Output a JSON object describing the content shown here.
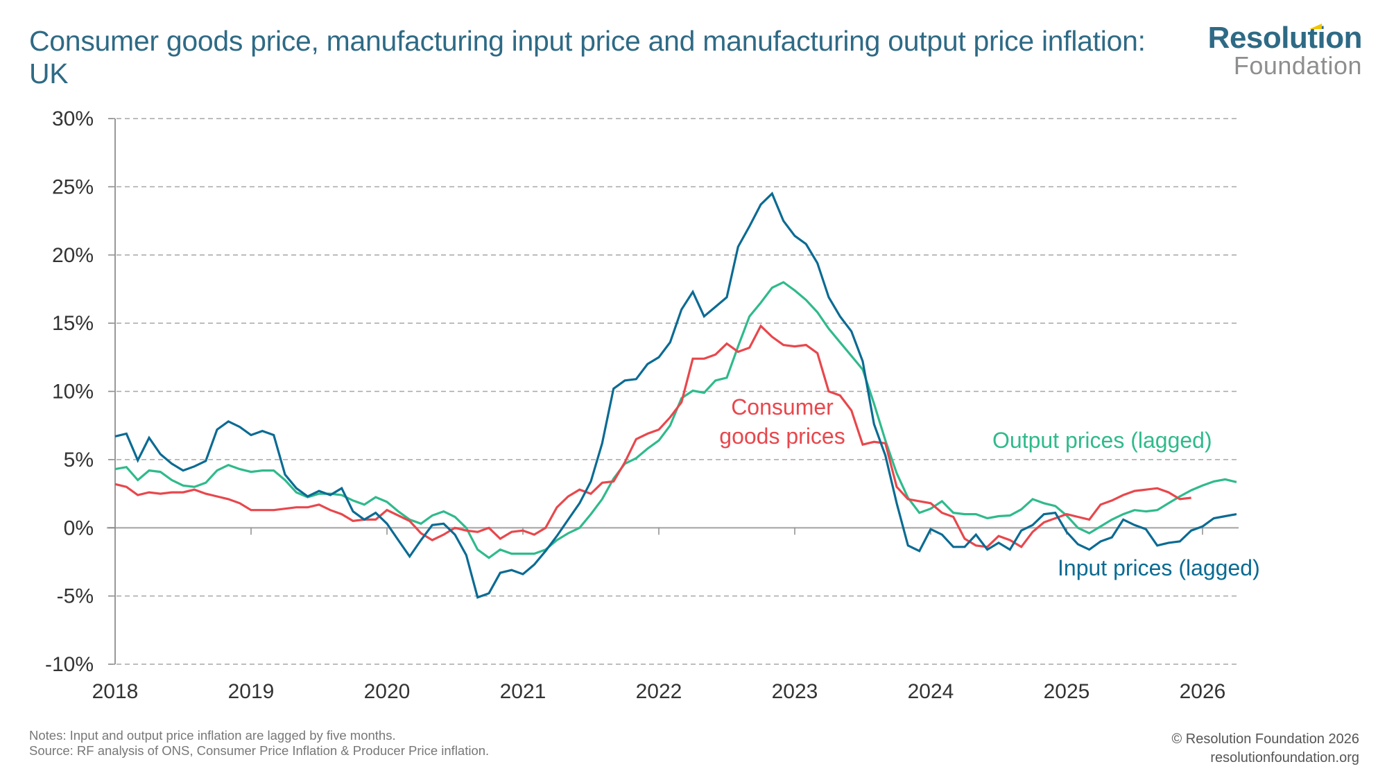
{
  "header": {
    "title": "Consumer goods price, manufacturing input price and manufacturing output price inflation: UK",
    "logo_main": "Resolution",
    "logo_sub": "Foundation"
  },
  "footer": {
    "notes": "Notes: Input and output price inflation are lagged by five months.",
    "source": "Source: RF analysis of ONS, Consumer Price Inflation & Producer Price inflation.",
    "copyright": "© Resolution Foundation 2026",
    "website": "resolutionfoundation.org"
  },
  "colors": {
    "consumer": "#e8474c",
    "output": "#2fba8c",
    "input": "#0a6b93",
    "title": "#2e6a85",
    "grid": "#a6a6a6",
    "axis": "#8c8c8c"
  },
  "chart_data": {
    "type": "line",
    "title": "Consumer goods price, manufacturing input price and manufacturing output price inflation: UK",
    "xlabel": "",
    "ylabel": "",
    "x_start": "2018-01",
    "x_frequency": "monthly",
    "x_ticks": [
      "2018",
      "2019",
      "2020",
      "2021",
      "2022",
      "2023",
      "2024",
      "2025",
      "2026"
    ],
    "y_ticks": [
      "-10%",
      "-5%",
      "0%",
      "5%",
      "10%",
      "15%",
      "20%",
      "25%",
      "30%"
    ],
    "ylim": [
      -10,
      30
    ],
    "xlim_months": [
      0,
      99
    ],
    "grid": "horizontal dashed",
    "legend": "inline labels",
    "series": [
      {
        "name": "Consumer goods prices",
        "label_lines": [
          "Consumer",
          "goods prices"
        ],
        "color_key": "consumer",
        "values": [
          3.2,
          3.0,
          2.4,
          2.6,
          2.5,
          2.6,
          2.6,
          2.8,
          2.5,
          2.3,
          2.1,
          1.8,
          1.3,
          1.3,
          1.3,
          1.4,
          1.5,
          1.5,
          1.7,
          1.3,
          1.0,
          0.5,
          0.6,
          0.6,
          1.3,
          0.9,
          0.5,
          -0.4,
          -0.9,
          -0.5,
          0.0,
          -0.2,
          -0.3,
          0.0,
          -0.8,
          -0.3,
          -0.2,
          -0.5,
          0.0,
          1.5,
          2.3,
          2.8,
          2.5,
          3.3,
          3.4,
          4.8,
          6.5,
          6.9,
          7.2,
          8.1,
          9.2,
          12.4,
          12.4,
          12.7,
          13.5,
          12.9,
          13.2,
          14.8,
          14.0,
          13.4,
          13.3,
          13.4,
          12.8,
          10.0,
          9.7,
          8.6,
          6.1,
          6.3,
          6.2,
          3.0,
          2.1,
          1.95,
          1.8,
          1.1,
          0.8,
          -0.8,
          -1.3,
          -1.4,
          -0.6,
          -0.9,
          -1.4,
          -0.3,
          0.4,
          0.7,
          1.0,
          0.8,
          0.6,
          1.7,
          2.0,
          2.4,
          2.7,
          2.8,
          2.9,
          2.6,
          2.1,
          2.2
        ]
      },
      {
        "name": "Output prices (lagged)",
        "label_lines": [
          "Output prices (lagged)"
        ],
        "color_key": "output",
        "values": [
          4.3,
          4.45,
          3.5,
          4.2,
          4.1,
          3.5,
          3.1,
          3.0,
          3.3,
          4.2,
          4.6,
          4.3,
          4.1,
          4.2,
          4.2,
          3.5,
          2.6,
          2.25,
          2.5,
          2.5,
          2.4,
          2.0,
          1.7,
          2.25,
          1.9,
          1.2,
          0.6,
          0.3,
          0.9,
          1.2,
          0.8,
          0.0,
          -1.6,
          -2.2,
          -1.6,
          -1.9,
          -1.9,
          -1.9,
          -1.6,
          -0.9,
          -0.4,
          0.0,
          1.0,
          2.1,
          3.6,
          4.7,
          5.1,
          5.8,
          6.4,
          7.5,
          9.5,
          10.05,
          9.9,
          10.8,
          11.0,
          13.3,
          15.5,
          16.5,
          17.6,
          18.0,
          17.4,
          16.7,
          15.8,
          14.6,
          13.6,
          12.6,
          11.6,
          9.1,
          6.4,
          4.0,
          2.2,
          1.1,
          1.4,
          1.95,
          1.1,
          1.0,
          1.0,
          0.7,
          0.85,
          0.9,
          1.35,
          2.1,
          1.8,
          1.6,
          0.9,
          0.0,
          -0.4,
          0.1,
          0.6,
          1.0,
          1.3,
          1.2,
          1.3,
          1.8,
          2.3,
          2.75,
          3.1,
          3.4,
          3.55,
          3.35
        ]
      },
      {
        "name": "Input prices (lagged)",
        "label_lines": [
          "Input prices (lagged)"
        ],
        "color_key": "input",
        "values": [
          6.7,
          6.9,
          4.95,
          6.6,
          5.4,
          4.7,
          4.2,
          4.5,
          4.9,
          7.2,
          7.8,
          7.4,
          6.8,
          7.1,
          6.8,
          3.9,
          2.9,
          2.3,
          2.7,
          2.4,
          2.9,
          1.2,
          0.6,
          1.1,
          0.3,
          -0.9,
          -2.1,
          -0.9,
          0.2,
          0.3,
          -0.5,
          -2.0,
          -5.1,
          -4.8,
          -3.3,
          -3.1,
          -3.4,
          -2.7,
          -1.7,
          -0.6,
          0.6,
          1.8,
          3.4,
          6.2,
          10.2,
          10.8,
          10.9,
          12.0,
          12.5,
          13.6,
          16.0,
          17.3,
          15.5,
          16.2,
          16.9,
          20.6,
          22.1,
          23.7,
          24.5,
          22.5,
          21.4,
          20.8,
          19.4,
          16.9,
          15.5,
          14.4,
          12.2,
          7.6,
          5.3,
          1.8,
          -1.3,
          -1.7,
          -0.1,
          -0.5,
          -1.4,
          -1.4,
          -0.5,
          -1.6,
          -1.1,
          -1.6,
          -0.2,
          0.2,
          1.0,
          1.1,
          -0.3,
          -1.2,
          -1.6,
          -1.0,
          -0.7,
          0.6,
          0.2,
          -0.1,
          -1.3,
          -1.1,
          -1.0,
          -0.2,
          0.1,
          0.7,
          0.85,
          1.0
        ]
      }
    ]
  }
}
